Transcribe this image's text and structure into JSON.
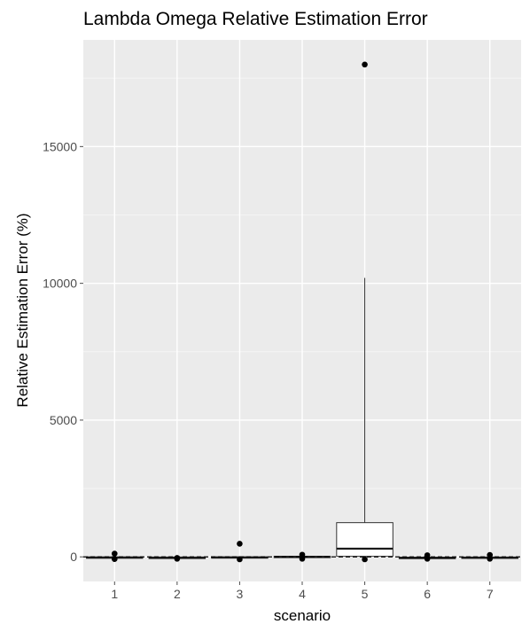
{
  "chart_data": {
    "type": "boxplot",
    "title": "Lambda Omega Relative Estimation Error",
    "xlabel": "scenario",
    "ylabel": "Relative Estimation Error (%)",
    "categories": [
      "1",
      "2",
      "3",
      "4",
      "5",
      "6",
      "7"
    ],
    "yticks": [
      0,
      5000,
      10000,
      15000
    ],
    "ytick_labels": [
      "0",
      "5000",
      "10000",
      "15000"
    ],
    "ylim": [
      -900,
      18900
    ],
    "grid": true,
    "reference_line": {
      "y": 0,
      "style": "dashed"
    },
    "boxes": [
      {
        "scenario": "1",
        "lower_whisker": -50,
        "q1": -30,
        "median": -20,
        "q3": -5,
        "upper_whisker": 10,
        "outliers": [
          120,
          -80
        ]
      },
      {
        "scenario": "2",
        "lower_whisker": -50,
        "q1": -35,
        "median": -25,
        "q3": -15,
        "upper_whisker": -5,
        "outliers": [
          -40,
          -70
        ]
      },
      {
        "scenario": "3",
        "lower_whisker": -50,
        "q1": -30,
        "median": -20,
        "q3": 0,
        "upper_whisker": 20,
        "outliers": [
          480,
          -90
        ]
      },
      {
        "scenario": "4",
        "lower_whisker": -30,
        "q1": -10,
        "median": 0,
        "q3": 20,
        "upper_whisker": 40,
        "outliers": [
          80,
          -70
        ]
      },
      {
        "scenario": "5",
        "lower_whisker": -40,
        "q1": 20,
        "median": 300,
        "q3": 1250,
        "upper_whisker": 10200,
        "outliers": [
          18000,
          -90
        ]
      },
      {
        "scenario": "6",
        "lower_whisker": -60,
        "q1": -45,
        "median": -30,
        "q3": -20,
        "upper_whisker": -10,
        "outliers": [
          60,
          -70
        ]
      },
      {
        "scenario": "7",
        "lower_whisker": -50,
        "q1": -35,
        "median": -25,
        "q3": -10,
        "upper_whisker": 0,
        "outliers": [
          70,
          -70
        ]
      }
    ]
  }
}
